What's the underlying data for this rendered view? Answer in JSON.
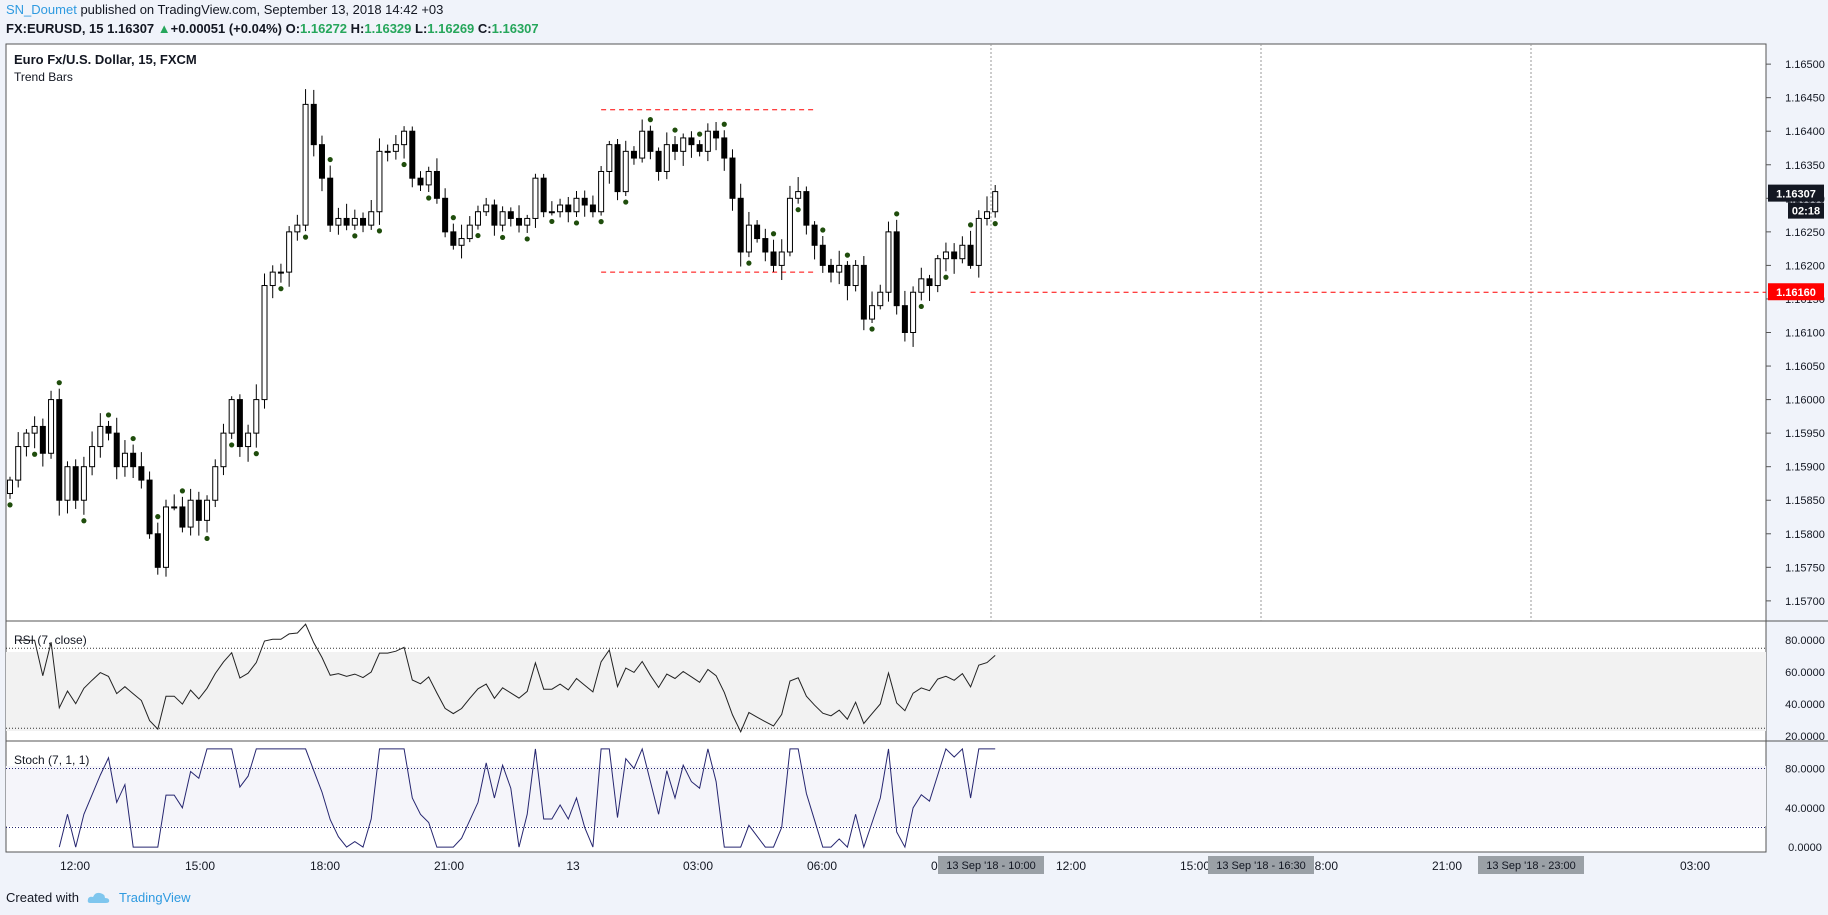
{
  "header": {
    "author": "SN_Doumet",
    "published": "published on TradingView.com, September 13, 2018 14:42 +03",
    "symbol": "FX:EURUSD, 15",
    "last": "1.16307",
    "change_arrow": "▲",
    "change": "+0.00051 (+0.04%)",
    "o_label": "O:",
    "o": "1.16272",
    "h_label": "H:",
    "h": "1.16329",
    "l_label": "L:",
    "l": "1.16269",
    "c_label": "C:",
    "c": "1.16307"
  },
  "footer": {
    "created_with": "Created with",
    "brand": "TradingView"
  },
  "colors": {
    "accent": "#2e9ae0",
    "up": "#26a65b",
    "down": "#000000",
    "marker": "#1f4d0c",
    "level": "#ff0000",
    "rsi_line": "#222222",
    "stoch_line": "#262670"
  },
  "chart_data": [
    {
      "type": "candlestick",
      "title": "Euro Fx/U.S. Dollar, 15, FXCM",
      "subtitle": "Trend Bars",
      "ylim": [
        1.1567,
        1.1653
      ],
      "y_ticks": [
        "1.16500",
        "1.16450",
        "1.16400",
        "1.16350",
        "1.16300",
        "1.16250",
        "1.16200",
        "1.16150",
        "1.16100",
        "1.16050",
        "1.16000",
        "1.15950",
        "1.15900",
        "1.15850",
        "1.15800",
        "1.15750",
        "1.15700"
      ],
      "x_ticks": [
        "12:00",
        "15:00",
        "18:00",
        "21:00",
        "13",
        "03:00",
        "06:00",
        "09:00",
        "12:00",
        "15:00",
        "18:00",
        "21:00",
        "03:00"
      ],
      "price_label": "1.16307",
      "countdown": "02:18",
      "level_label": "1.16160",
      "level_value": 1.1616,
      "upper_range": 1.16432,
      "lower_range": 1.1619,
      "time_labels": [
        "13 Sep '18 - 10:00",
        "13 Sep '18 - 16:30",
        "13 Sep '18 - 23:00"
      ],
      "close": [
        1.1588,
        1.1593,
        1.1595,
        1.1596,
        1.1592,
        1.16,
        1.1585,
        1.159,
        1.1585,
        1.159,
        1.1593,
        1.1596,
        1.1595,
        1.159,
        1.1592,
        1.159,
        1.1588,
        1.158,
        1.1575,
        1.1584,
        1.1584,
        1.1581,
        1.1585,
        1.1582,
        1.1585,
        1.159,
        1.1595,
        1.16,
        1.1593,
        1.1595,
        1.16,
        1.1617,
        1.1619,
        1.1619,
        1.1625,
        1.1626,
        1.1644,
        1.1638,
        1.1633,
        1.1626,
        1.1627,
        1.1626,
        1.1627,
        1.1626,
        1.1628,
        1.1637,
        1.1637,
        1.1638,
        1.164,
        1.1633,
        1.1632,
        1.1634,
        1.163,
        1.1625,
        1.1623,
        1.1624,
        1.1626,
        1.1628,
        1.1629,
        1.1626,
        1.1628,
        1.1627,
        1.1626,
        1.1627,
        1.1633,
        1.1628,
        1.1628,
        1.1629,
        1.1628,
        1.163,
        1.1629,
        1.1628,
        1.1634,
        1.1638,
        1.1631,
        1.1637,
        1.1636,
        1.164,
        1.1637,
        1.1634,
        1.1638,
        1.1637,
        1.1639,
        1.1638,
        1.1637,
        1.164,
        1.1639,
        1.1636,
        1.163,
        1.1622,
        1.1626,
        1.1624,
        1.1622,
        1.162,
        1.1622,
        1.163,
        1.1631,
        1.1626,
        1.1623,
        1.162,
        1.1619,
        1.162,
        1.1617,
        1.162,
        1.1612,
        1.1614,
        1.1616,
        1.1625,
        1.1614,
        1.161,
        1.1616,
        1.1618,
        1.1617,
        1.1621,
        1.1622,
        1.1621,
        1.1623,
        1.162,
        1.1627,
        1.1628,
        1.1631
      ]
    },
    {
      "type": "line",
      "title": "RSI (7, close)",
      "ylim": [
        17,
        92
      ],
      "y_ticks": [
        "80.0000",
        "60.0000",
        "40.0000",
        "20.0000"
      ],
      "bands": [
        75,
        25
      ]
    },
    {
      "type": "line",
      "title": "Stoch (7, 1, 1)",
      "ylim": [
        -5,
        108
      ],
      "y_ticks": [
        "80.0000",
        "40.0000",
        "0.0000"
      ],
      "bands": [
        80,
        20
      ]
    }
  ]
}
